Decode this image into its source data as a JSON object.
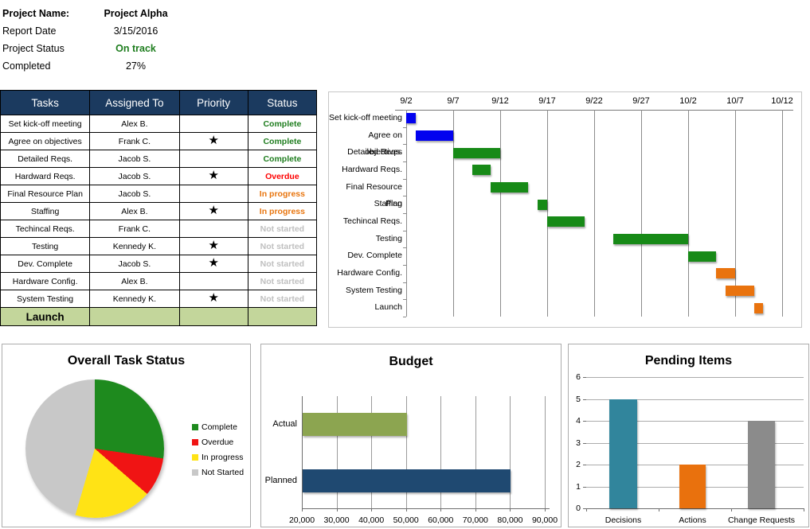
{
  "project_info": {
    "rows": [
      {
        "label": "Project Name:",
        "value": "Project Alpha",
        "style": "bold"
      },
      {
        "label": "Report Date",
        "value": "3/15/2016",
        "style": "normal"
      },
      {
        "label": "Project Status",
        "value": "On track",
        "style": "green"
      },
      {
        "label": "Completed",
        "value": "27%",
        "style": "normal"
      }
    ]
  },
  "task_table": {
    "headers": [
      "Tasks",
      "Assigned To",
      "Priority",
      "Status"
    ],
    "priority_icon": "★",
    "header_bg": "#1B3A5F",
    "footer_bg": "#C3D69B",
    "footer_label": "Launch",
    "status_colors": {
      "complete": "#1E7D1E",
      "overdue": "#FE0000",
      "inprogress": "#E8750E",
      "notstarted": "#BFBFBF"
    },
    "rows": [
      {
        "task": "Set kick-off meeting",
        "assigned": "Alex B.",
        "priority": false,
        "status": "Complete",
        "status_key": "complete"
      },
      {
        "task": "Agree on objectives",
        "assigned": "Frank C.",
        "priority": true,
        "status": "Complete",
        "status_key": "complete"
      },
      {
        "task": "Detailed Reqs.",
        "assigned": "Jacob S.",
        "priority": false,
        "status": "Complete",
        "status_key": "complete"
      },
      {
        "task": "Hardward Reqs.",
        "assigned": "Jacob S.",
        "priority": true,
        "status": "Overdue",
        "status_key": "overdue"
      },
      {
        "task": "Final Resource Plan",
        "assigned": "Jacob S.",
        "priority": false,
        "status": "In progress",
        "status_key": "inprogress"
      },
      {
        "task": "Staffing",
        "assigned": "Alex B.",
        "priority": true,
        "status": "In progress",
        "status_key": "inprogress"
      },
      {
        "task": "Techincal Reqs.",
        "assigned": "Frank C.",
        "priority": false,
        "status": "Not started",
        "status_key": "notstarted"
      },
      {
        "task": "Testing",
        "assigned": "Kennedy K.",
        "priority": true,
        "status": "Not started",
        "status_key": "notstarted"
      },
      {
        "task": "Dev. Complete",
        "assigned": "Jacob S.",
        "priority": true,
        "status": "Not started",
        "status_key": "notstarted"
      },
      {
        "task": "Hardware Config.",
        "assigned": "Alex B.",
        "priority": false,
        "status": "Not started",
        "status_key": "notstarted"
      },
      {
        "task": "System Testing",
        "assigned": "Kennedy K.",
        "priority": true,
        "status": "Not started",
        "status_key": "notstarted"
      }
    ]
  },
  "chart_data": [
    {
      "type": "gantt",
      "title": "",
      "x_ticks": [
        "9/2",
        "9/7",
        "9/12",
        "9/17",
        "9/22",
        "9/27",
        "10/2",
        "10/7",
        "10/12"
      ],
      "x_range_days": 40,
      "tasks": [
        {
          "name": "Set kick-off meeting",
          "start_date": "9/2",
          "end_date": "9/3",
          "start_day": 0,
          "duration_days": 1,
          "color": "#0202EF"
        },
        {
          "name": "Agree on objectives",
          "start_date": "9/3",
          "end_date": "9/7",
          "start_day": 1,
          "duration_days": 4,
          "color": "#0202EF"
        },
        {
          "name": "Detailed Reqs.",
          "start_date": "9/7",
          "end_date": "9/12",
          "start_day": 5,
          "duration_days": 5,
          "color": "#178A17"
        },
        {
          "name": "Hardward Reqs.",
          "start_date": "9/9",
          "end_date": "9/11",
          "start_day": 7,
          "duration_days": 2,
          "color": "#178A17"
        },
        {
          "name": "Final Resource Plan",
          "start_date": "9/11",
          "end_date": "9/15",
          "start_day": 9,
          "duration_days": 4,
          "color": "#178A17"
        },
        {
          "name": "Staffing",
          "start_date": "9/16",
          "end_date": "9/17",
          "start_day": 14,
          "duration_days": 1,
          "color": "#178A17"
        },
        {
          "name": "Techincal Reqs.",
          "start_date": "9/17",
          "end_date": "9/21",
          "start_day": 15,
          "duration_days": 4,
          "color": "#178A17"
        },
        {
          "name": "Testing",
          "start_date": "9/24",
          "end_date": "10/2",
          "start_day": 22,
          "duration_days": 8,
          "color": "#178A17"
        },
        {
          "name": "Dev. Complete",
          "start_date": "10/2",
          "end_date": "10/5",
          "start_day": 30,
          "duration_days": 3,
          "color": "#178A17"
        },
        {
          "name": "Hardware Config.",
          "start_date": "10/5",
          "end_date": "10/7",
          "start_day": 33,
          "duration_days": 2,
          "color": "#E9730E"
        },
        {
          "name": "System Testing",
          "start_date": "10/6",
          "end_date": "10/9",
          "start_day": 34,
          "duration_days": 3,
          "color": "#E9730E"
        },
        {
          "name": "Launch",
          "start_date": "10/9",
          "end_date": "10/10",
          "start_day": 37,
          "duration_days": 1,
          "color": "#E9730E"
        }
      ]
    },
    {
      "type": "pie",
      "title": "Overall Task Status",
      "labels": [
        "Complete",
        "Overdue",
        "In progress",
        "Not Started"
      ],
      "values": [
        3,
        1,
        2,
        5
      ],
      "colors": [
        "#1E8A1E",
        "#F01414",
        "#FFE315",
        "#C8C8C8"
      ],
      "legend_position": "right"
    },
    {
      "type": "bar",
      "orientation": "horizontal",
      "title": "Budget",
      "categories": [
        "Actual",
        "Planned"
      ],
      "values": [
        50000,
        80000
      ],
      "colors": [
        "#8CA550",
        "#1F4971"
      ],
      "xlim": [
        20000,
        90000
      ],
      "x_ticks": [
        "20,000",
        "30,000",
        "40,000",
        "50,000",
        "60,000",
        "70,000",
        "80,000",
        "90,000"
      ],
      "grid": true
    },
    {
      "type": "bar",
      "orientation": "vertical",
      "title": "Pending Items",
      "categories": [
        "Decisions",
        "Actions",
        "Change Requests"
      ],
      "values": [
        5,
        2,
        4
      ],
      "colors": [
        "#31859C",
        "#E9710D",
        "#8B8B8B"
      ],
      "ylim": [
        0,
        6
      ],
      "y_ticks": [
        0,
        1,
        2,
        3,
        4,
        5,
        6
      ],
      "grid": true
    }
  ]
}
